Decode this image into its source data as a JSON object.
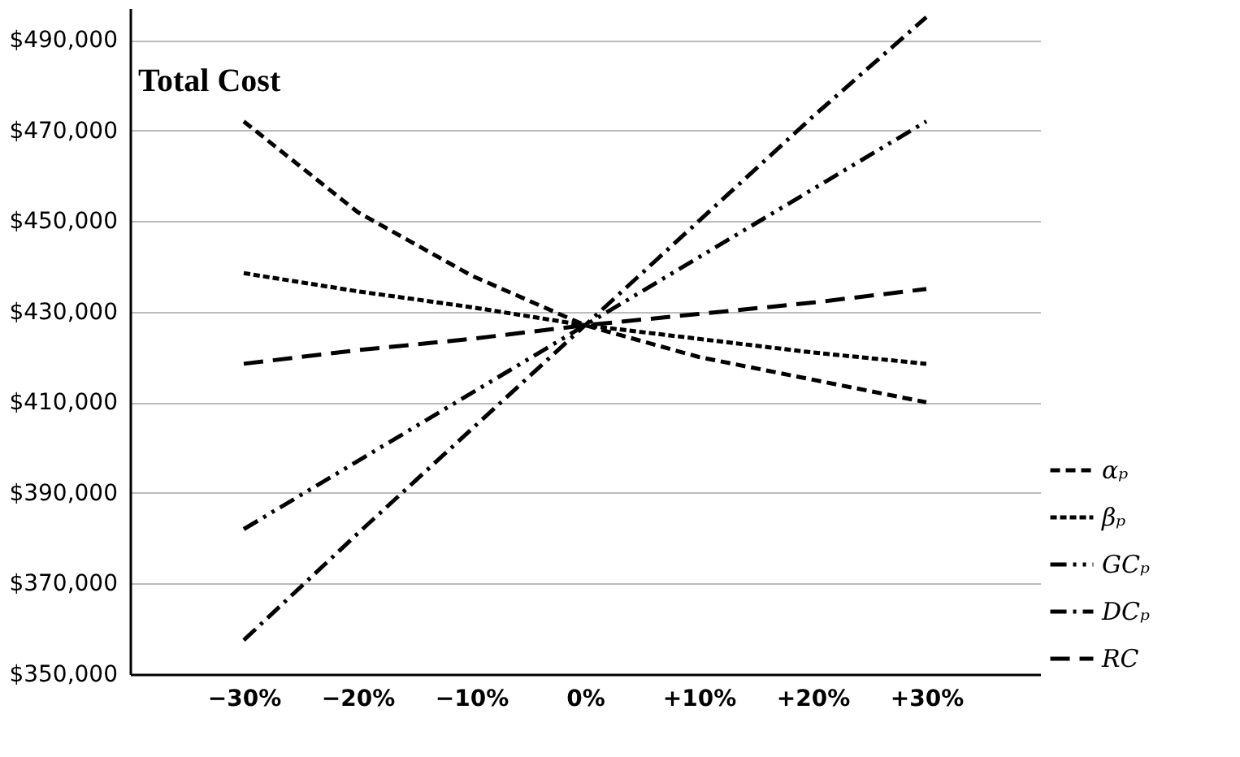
{
  "chart_data": {
    "type": "line",
    "title": "Total Cost",
    "categories": [
      "−30%",
      "−20%",
      "−10%",
      "0%",
      "+10%",
      "+20%",
      "+30%"
    ],
    "series": [
      {
        "name": "αₚ",
        "color": "#000000",
        "line_style": "dashed",
        "values": [
          472000,
          452000,
          438000,
          427000,
          420000,
          415000,
          410000
        ]
      },
      {
        "name": "βₚ",
        "color": "#000000",
        "line_style": "dotted",
        "values": [
          438500,
          434500,
          431000,
          427000,
          424000,
          421000,
          418500
        ]
      },
      {
        "name": "GCₚ",
        "color": "#000000",
        "line_style": "dashdotdot",
        "values": [
          382000,
          397000,
          412000,
          427000,
          442000,
          457000,
          472000
        ]
      },
      {
        "name": "DCₚ",
        "color": "#000000",
        "line_style": "dashdot",
        "values": [
          357500,
          381000,
          404000,
          427000,
          450000,
          473000,
          495000
        ]
      },
      {
        "name": "RC",
        "color": "#000000",
        "line_style": "longdash",
        "values": [
          418500,
          421500,
          424000,
          427000,
          429500,
          432000,
          435000
        ]
      }
    ],
    "ylim": [
      350000,
      497000
    ],
    "yticks": [
      {
        "value": 350000,
        "label": "$350,000"
      },
      {
        "value": 370000,
        "label": "$370,000"
      },
      {
        "value": 390000,
        "label": "$390,000"
      },
      {
        "value": 410000,
        "label": "$410,000"
      },
      {
        "value": 430000,
        "label": "$430,000"
      },
      {
        "value": 450000,
        "label": "$450,000"
      },
      {
        "value": 470000,
        "label": "$470,000"
      },
      {
        "value": 490000,
        "label": "$490,000"
      }
    ],
    "grid": "y",
    "legend": "bottom right",
    "marker": "none"
  }
}
